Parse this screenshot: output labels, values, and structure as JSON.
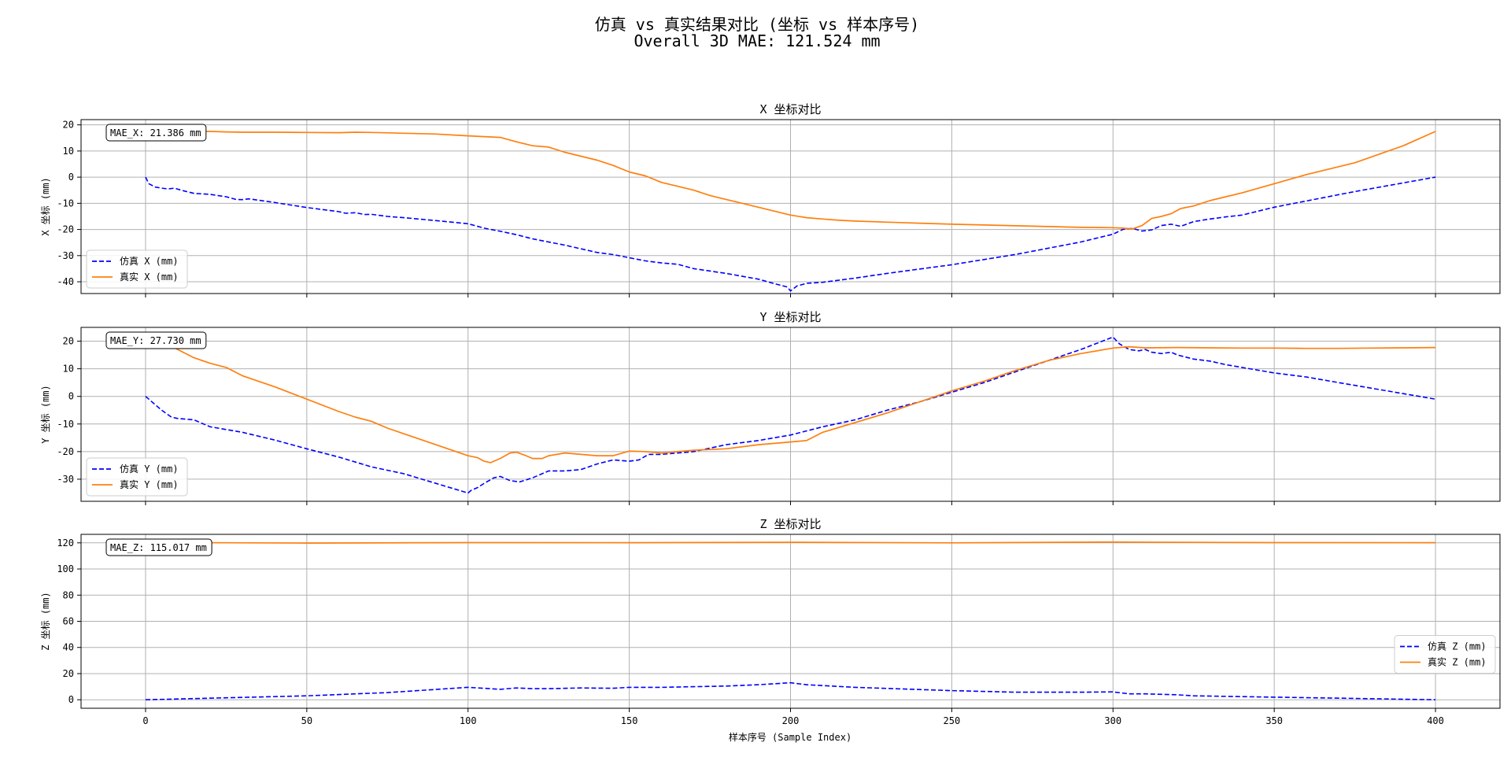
{
  "figure": {
    "title_line1": "仿真 vs 真实结果对比 (坐标 vs 样本序号)",
    "title_line2": "Overall 3D MAE: 121.524 mm",
    "xlabel": "样本序号 (Sample Index)"
  },
  "colors": {
    "sim": "#0000ff",
    "real": "#ff7f0e",
    "grid": "#b0b0b0"
  },
  "chart_data": [
    {
      "type": "line",
      "title": "X 坐标对比",
      "ylabel": "X 坐标 (mm)",
      "annotation": "MAE_X: 21.386 mm",
      "legend_loc": "lower-left",
      "xlim": [
        -20,
        420
      ],
      "ylim": [
        -44.5,
        22
      ],
      "xticks": [
        0,
        50,
        100,
        150,
        200,
        250,
        300,
        350,
        400
      ],
      "yticks": [
        20,
        10,
        0,
        -10,
        -20,
        -30,
        -40
      ],
      "series": [
        {
          "name": "仿真 X (mm)",
          "style": "dashed",
          "x": [
            0,
            1,
            3,
            5,
            7,
            9,
            10,
            12,
            15,
            20,
            25,
            28,
            30,
            32,
            35,
            40,
            50,
            60,
            62,
            65,
            68,
            70,
            75,
            80,
            90,
            100,
            105,
            110,
            115,
            120,
            130,
            140,
            145,
            150,
            155,
            160,
            165,
            170,
            180,
            190,
            195,
            199,
            200,
            202,
            205,
            210,
            220,
            230,
            250,
            270,
            290,
            300,
            303,
            306,
            309,
            312,
            315,
            318,
            321,
            325,
            330,
            335,
            340,
            350,
            375,
            400
          ],
          "values": [
            0,
            -2.5,
            -3.8,
            -4.2,
            -4.5,
            -4.2,
            -4.6,
            -5.3,
            -6.2,
            -6.6,
            -7.5,
            -8.5,
            -8.6,
            -8.3,
            -8.8,
            -9.7,
            -11.6,
            -13.2,
            -13.8,
            -13.6,
            -14.3,
            -14.2,
            -15.0,
            -15.5,
            -16.6,
            -17.8,
            -19.5,
            -20.7,
            -22.0,
            -23.6,
            -26.0,
            -28.8,
            -29.6,
            -30.8,
            -32.0,
            -32.8,
            -33.3,
            -35.0,
            -36.8,
            -39.0,
            -40.7,
            -42.0,
            -43.5,
            -41.6,
            -40.6,
            -40.2,
            -38.6,
            -36.8,
            -33.5,
            -29.5,
            -24.8,
            -21.8,
            -20.0,
            -19.6,
            -20.6,
            -20.2,
            -18.5,
            -18.0,
            -18.8,
            -17.0,
            -16.0,
            -15.2,
            -14.5,
            -11.5,
            -5.5,
            0
          ]
        },
        {
          "name": "真实 X (mm)",
          "style": "solid",
          "x": [
            0,
            20,
            25,
            30,
            40,
            50,
            60,
            65,
            70,
            80,
            90,
            100,
            105,
            110,
            115,
            120,
            125,
            130,
            135,
            140,
            145,
            150,
            155,
            160,
            165,
            170,
            175,
            180,
            185,
            190,
            195,
            200,
            205,
            210,
            215,
            220,
            230,
            240,
            250,
            260,
            270,
            280,
            290,
            300,
            303,
            306,
            309,
            312,
            315,
            318,
            321,
            325,
            330,
            335,
            340,
            350,
            360,
            375,
            390,
            400
          ],
          "values": [
            17.5,
            17.5,
            17.3,
            17.2,
            17.2,
            17.1,
            17.0,
            17.2,
            17.1,
            16.8,
            16.5,
            15.8,
            15.5,
            15.2,
            13.5,
            12.0,
            11.5,
            9.5,
            8.0,
            6.5,
            4.5,
            2.0,
            0.5,
            -2.0,
            -3.5,
            -5.0,
            -7.0,
            -8.5,
            -10.0,
            -11.5,
            -13.0,
            -14.5,
            -15.5,
            -16.0,
            -16.5,
            -16.8,
            -17.2,
            -17.6,
            -18.0,
            -18.3,
            -18.6,
            -18.9,
            -19.2,
            -19.3,
            -19.5,
            -19.8,
            -18.5,
            -15.8,
            -15.0,
            -14.0,
            -12.0,
            -11.0,
            -9.0,
            -7.5,
            -6.0,
            -2.5,
            1.0,
            5.5,
            12.0,
            17.5
          ]
        }
      ]
    },
    {
      "type": "line",
      "title": "Y 坐标对比",
      "ylabel": "Y 坐标 (mm)",
      "annotation": "MAE_Y: 27.730 mm",
      "legend_loc": "lower-left",
      "xlim": [
        -20,
        420
      ],
      "ylim": [
        -38,
        25
      ],
      "xticks": [
        0,
        50,
        100,
        150,
        200,
        250,
        300,
        350,
        400
      ],
      "yticks": [
        20,
        10,
        0,
        -10,
        -20,
        -30
      ],
      "series": [
        {
          "name": "仿真 Y (mm)",
          "style": "dashed",
          "x": [
            0,
            1,
            3,
            5,
            8,
            10,
            15,
            20,
            30,
            40,
            50,
            60,
            70,
            80,
            90,
            100,
            101,
            103,
            105,
            108,
            110,
            113,
            116,
            120,
            125,
            130,
            135,
            140,
            145,
            150,
            153,
            156,
            160,
            170,
            180,
            190,
            200,
            210,
            220,
            230,
            240,
            250,
            260,
            270,
            280,
            290,
            300,
            302,
            305,
            308,
            310,
            312,
            315,
            318,
            320,
            325,
            330,
            335,
            340,
            345,
            350,
            360,
            370,
            380,
            390,
            400
          ],
          "values": [
            0,
            -1,
            -3,
            -5,
            -7.5,
            -8,
            -8.5,
            -11,
            -13,
            -15.8,
            -19,
            -22,
            -25.5,
            -28,
            -31.5,
            -35,
            -34,
            -33,
            -31.5,
            -29.5,
            -29,
            -30.5,
            -31,
            -29.5,
            -27,
            -27,
            -26.5,
            -24.5,
            -23,
            -23.5,
            -23,
            -21,
            -21,
            -20,
            -17.5,
            -16,
            -14,
            -11,
            -8.5,
            -5,
            -2,
            1.5,
            5,
            9,
            13,
            17,
            21.5,
            19,
            17,
            16.5,
            17,
            16,
            15.5,
            16,
            15,
            13.5,
            12.8,
            11.5,
            10.5,
            9.5,
            8.5,
            7,
            5,
            3,
            1,
            -1
          ]
        },
        {
          "name": "真实 Y (mm)",
          "style": "solid",
          "x": [
            0,
            5,
            10,
            15,
            20,
            25,
            30,
            40,
            50,
            60,
            65,
            70,
            75,
            80,
            90,
            100,
            103,
            105,
            107,
            110,
            113,
            115,
            118,
            120,
            123,
            125,
            130,
            135,
            140,
            145,
            150,
            155,
            160,
            165,
            170,
            180,
            190,
            200,
            205,
            210,
            220,
            230,
            240,
            250,
            260,
            270,
            280,
            290,
            300,
            305,
            310,
            320,
            330,
            340,
            350,
            360,
            370,
            380,
            390,
            400
          ],
          "values": [
            22,
            20,
            17,
            14,
            12,
            10.5,
            7.5,
            3.5,
            -1,
            -5.5,
            -7.5,
            -9,
            -11.5,
            -13.5,
            -17.5,
            -21.5,
            -22.2,
            -23.5,
            -24,
            -22.5,
            -20.5,
            -20.2,
            -21.5,
            -22.5,
            -22.5,
            -21.5,
            -20.5,
            -21,
            -21.5,
            -21.5,
            -19.8,
            -20,
            -20.5,
            -20,
            -19.5,
            -19,
            -17.5,
            -16.5,
            -16,
            -13,
            -9.5,
            -6,
            -2,
            2,
            5.5,
            9.5,
            13,
            15.5,
            17.5,
            18,
            17.6,
            17.7,
            17.6,
            17.5,
            17.5,
            17.4,
            17.4,
            17.5,
            17.6,
            17.7
          ]
        }
      ]
    },
    {
      "type": "line",
      "title": "Z 坐标对比",
      "ylabel": "Z 坐标 (mm)",
      "annotation": "MAE_Z: 115.017 mm",
      "legend_loc": "center-right",
      "xlim": [
        -20,
        420
      ],
      "ylim": [
        -6.5,
        126.5
      ],
      "xticks": [
        0,
        50,
        100,
        150,
        200,
        250,
        300,
        350,
        400
      ],
      "yticks": [
        120,
        100,
        80,
        60,
        40,
        20,
        0
      ],
      "series": [
        {
          "name": "仿真 Z (mm)",
          "style": "dashed",
          "x": [
            0,
            25,
            50,
            75,
            100,
            110,
            115,
            120,
            125,
            135,
            145,
            150,
            160,
            170,
            180,
            190,
            200,
            205,
            220,
            250,
            270,
            290,
            300,
            305,
            310,
            320,
            325,
            350,
            375,
            400
          ],
          "values": [
            0,
            1.5,
            3,
            5.5,
            9.5,
            8,
            9,
            8.5,
            8.5,
            9,
            8.8,
            9.5,
            9.5,
            10,
            10.5,
            11.5,
            13,
            11.5,
            9.5,
            7,
            5.8,
            5.8,
            6,
            4.5,
            4.5,
            3.8,
            3,
            2,
            1,
            0
          ]
        },
        {
          "name": "真实 Z (mm)",
          "style": "solid",
          "x": [
            0,
            50,
            100,
            150,
            200,
            250,
            300,
            350,
            400
          ],
          "values": [
            120.3,
            119.8,
            120.2,
            120.1,
            120.4,
            120.0,
            120.6,
            120.2,
            120.1
          ]
        }
      ]
    }
  ]
}
